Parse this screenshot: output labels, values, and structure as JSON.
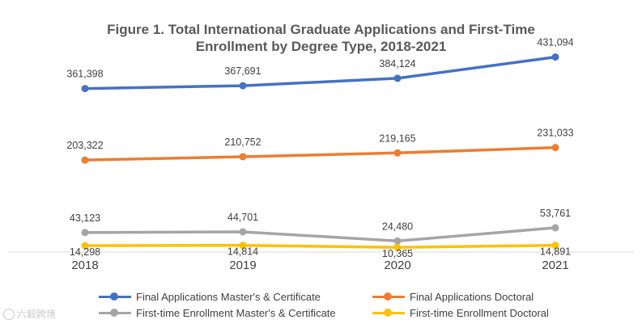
{
  "chart_data": {
    "type": "line",
    "title_line1": "Figure 1. Total International Graduate Applications and First-Time",
    "title_line2": "Enrollment by Degree Type, 2018-2021",
    "categories": [
      "2018",
      "2019",
      "2020",
      "2021"
    ],
    "series": [
      {
        "name": "Final Applications  Master's & Certificate",
        "color": "#4472C4",
        "values": [
          361398,
          367691,
          384124,
          431094
        ],
        "labels": [
          "361,398",
          "367,691",
          "384,124",
          "431,094"
        ]
      },
      {
        "name": "Final Applications  Doctoral",
        "color": "#ED7D31",
        "values": [
          203322,
          210752,
          219165,
          231033
        ],
        "labels": [
          "203,322",
          "210,752",
          "219,165",
          "231,033"
        ]
      },
      {
        "name": "First-time Enrollment  Master's & Certificate",
        "color": "#A5A5A5",
        "values": [
          43123,
          44701,
          24480,
          53761
        ],
        "labels": [
          "43,123",
          "44,701",
          "24,480",
          "53,761"
        ]
      },
      {
        "name": "First-time Enrollment  Doctoral",
        "color": "#FFC000",
        "values": [
          14298,
          14814,
          10365,
          14891
        ],
        "labels": [
          "14,298",
          "14,814",
          "10,365",
          "14,891"
        ]
      }
    ],
    "ylim": [
      0,
      450000
    ],
    "legend_position": "bottom"
  },
  "watermark": "六毅跨境"
}
